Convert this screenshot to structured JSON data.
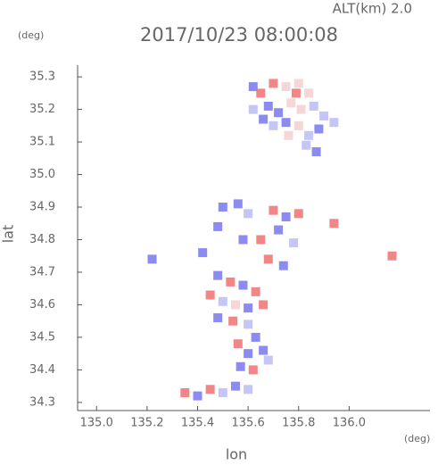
{
  "chart_data": {
    "type": "scatter",
    "header": "ALT(km) 2.0",
    "title": "2017/10/23 08:00:08",
    "y_unit": "(deg)",
    "x_unit": "(deg)",
    "xlabel": "lon",
    "ylabel": "lat",
    "xlim": [
      134.925,
      136.32
    ],
    "ylim": [
      34.275,
      35.336
    ],
    "xticks": [
      {
        "value": 135,
        "label": "135.0"
      },
      135.2,
      135.4,
      135.6,
      135.8,
      {
        "value": 136,
        "label": "136.0"
      }
    ],
    "yticks": [
      34.3,
      34.4,
      34.5,
      34.6,
      34.7,
      34.8,
      34.9,
      {
        "value": 35,
        "label": "35.0"
      },
      35.1,
      35.2,
      35.3
    ],
    "x": [
      135.62,
      135.65,
      135.7,
      135.75,
      135.8,
      135.84,
      135.68,
      135.72,
      135.77,
      135.81,
      135.86,
      135.9,
      135.94,
      135.88,
      135.84,
      135.8,
      135.75,
      135.7,
      135.76,
      135.83,
      135.87,
      135.66,
      135.62,
      135.79,
      135.5,
      135.56,
      135.6,
      135.7,
      135.75,
      135.8,
      135.48,
      135.58,
      135.65,
      135.72,
      135.78,
      135.68,
      135.74,
      135.94,
      135.42,
      135.48,
      135.53,
      135.58,
      135.63,
      135.45,
      135.5,
      135.55,
      135.6,
      135.66,
      135.48,
      135.54,
      135.6,
      135.63,
      135.56,
      135.6,
      135.66,
      135.57,
      135.62,
      135.68,
      135.35,
      135.4,
      135.45,
      135.5,
      135.55,
      135.6,
      136.17,
      135.22
    ],
    "y": [
      35.27,
      35.25,
      35.28,
      35.27,
      35.28,
      35.25,
      35.21,
      35.19,
      35.22,
      35.2,
      35.21,
      35.18,
      35.16,
      35.14,
      35.12,
      35.15,
      35.16,
      35.15,
      35.12,
      35.09,
      35.07,
      35.17,
      35.2,
      35.25,
      34.9,
      34.91,
      34.88,
      34.89,
      34.87,
      34.88,
      34.84,
      34.8,
      34.8,
      34.83,
      34.79,
      34.74,
      34.72,
      34.85,
      34.76,
      34.69,
      34.67,
      34.66,
      34.64,
      34.63,
      34.61,
      34.6,
      34.59,
      34.6,
      34.56,
      34.55,
      34.54,
      34.5,
      34.48,
      34.45,
      34.46,
      34.41,
      34.4,
      34.43,
      34.33,
      34.32,
      34.34,
      34.33,
      34.35,
      34.34,
      34.75,
      34.74
    ],
    "colors": [
      "#7777ee",
      "#f07070",
      "#f07070",
      "#f5cfcf",
      "#f5cfcf",
      "#f5cfcf",
      "#7777ee",
      "#7777ee",
      "#f5cfcf",
      "#f5cfcf",
      "#bbbbf5",
      "#bbbbf5",
      "#bbbbf5",
      "#7777ee",
      "#bbbbf5",
      "#f5cfcf",
      "#7777ee",
      "#bbbbf5",
      "#f5cfcf",
      "#bbbbf5",
      "#7777ee",
      "#7777ee",
      "#bbbbf5",
      "#f07070",
      "#7777ee",
      "#7777ee",
      "#bbbbf5",
      "#f07070",
      "#7777ee",
      "#f07070",
      "#7777ee",
      "#7777ee",
      "#f07070",
      "#7777ee",
      "#bbbbf5",
      "#f07070",
      "#7777ee",
      "#f07070",
      "#7777ee",
      "#7777ee",
      "#f07070",
      "#7777ee",
      "#f07070",
      "#f07070",
      "#bbbbf5",
      "#f5cfcf",
      "#7777ee",
      "#f07070",
      "#7777ee",
      "#f07070",
      "#bbbbf5",
      "#7777ee",
      "#f07070",
      "#7777ee",
      "#7777ee",
      "#7777ee",
      "#f07070",
      "#bbbbf5",
      "#f07070",
      "#7777ee",
      "#f07070",
      "#bbbbf5",
      "#7777ee",
      "#bbbbf5",
      "#f07070",
      "#7777ee"
    ]
  }
}
